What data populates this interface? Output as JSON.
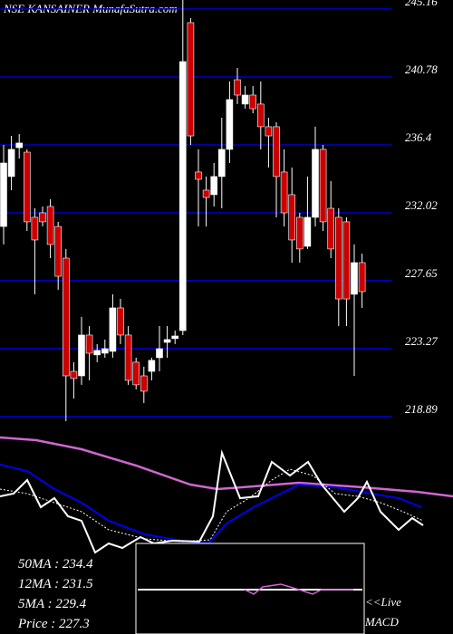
{
  "chart_data": {
    "type": "candlestick",
    "title": "NSE KANSAINER MunafaSutra.com",
    "ylim": [
      218.59,
      245.74
    ],
    "yticks": [
      245.16,
      240.78,
      236.4,
      232.02,
      227.65,
      223.27,
      218.89
    ],
    "grid": true,
    "up_color": "#ffffff",
    "down_color": "#cc0000",
    "open": [
      231.14,
      234.36,
      236.22,
      235.93,
      231.73,
      232.02,
      232.43,
      231.14,
      229.1,
      221.8,
      221.51,
      224.14,
      222.86,
      222.97,
      223.09,
      225.89,
      224.14,
      222.39,
      221.51,
      221.8,
      222.68,
      223.67,
      223.91,
      224.43,
      244.28,
      234.65,
      233.48,
      233.19,
      234.36,
      236.11,
      240.6,
      239.03,
      239.61,
      239.03,
      237.57,
      237.57,
      234.65,
      233.19,
      231.73,
      229.86,
      231.73,
      236.11,
      232.31,
      231.73,
      231.44,
      226.77,
      228.81
    ],
    "close": [
      235.23,
      236.11,
      236.52,
      231.44,
      230.27,
      231.44,
      229.98,
      227.93,
      221.51,
      221.34,
      224.14,
      222.97,
      223.15,
      223.26,
      225.89,
      224.14,
      221.22,
      220.93,
      220.52,
      222.51,
      223.26,
      223.85,
      224.08,
      241.77,
      236.98,
      234.18,
      233.01,
      234.36,
      236.11,
      239.32,
      239.61,
      239.61,
      238.73,
      237.57,
      236.98,
      234.36,
      232.02,
      230.27,
      229.69,
      231.73,
      236.11,
      231.44,
      229.69,
      226.47,
      226.47,
      228.81,
      226.94
    ],
    "high": [
      236.4,
      236.98,
      237.1,
      236.11,
      232.31,
      232.43,
      232.9,
      231.44,
      229.69,
      222.39,
      225.31,
      224.72,
      223.56,
      223.85,
      226.77,
      226.47,
      224.72,
      222.68,
      222.1,
      222.68,
      224.72,
      224.72,
      224.43,
      245.74,
      244.57,
      236.11,
      234.36,
      235.23,
      238.15,
      240.49,
      241.36,
      240.19,
      240.19,
      240.49,
      238.15,
      237.86,
      236.11,
      234.94,
      232.02,
      234.36,
      237.57,
      236.4,
      234.06,
      232.31,
      231.73,
      229.98,
      229.39
    ],
    "low": [
      229.98,
      233.48,
      235.52,
      230.85,
      226.77,
      231.14,
      229.1,
      227.06,
      218.59,
      220.05,
      220.93,
      221.22,
      222.39,
      222.68,
      222.68,
      223.56,
      220.93,
      220.64,
      219.76,
      221.22,
      221.8,
      222.68,
      223.56,
      224.14,
      236.4,
      231.14,
      231.14,
      232.43,
      232.31,
      235.23,
      239.03,
      238.73,
      238.44,
      236.11,
      234.94,
      231.73,
      231.14,
      228.81,
      228.81,
      229.69,
      231.14,
      230.85,
      229.1,
      224.72,
      224.72,
      221.51,
      225.89
    ],
    "indicators": [
      "50MA : 234.4",
      "12MA : 231.5",
      "5MA : 229.4",
      "Price   : 227.3"
    ],
    "live": "<<Live",
    "macd": "MACD"
  }
}
